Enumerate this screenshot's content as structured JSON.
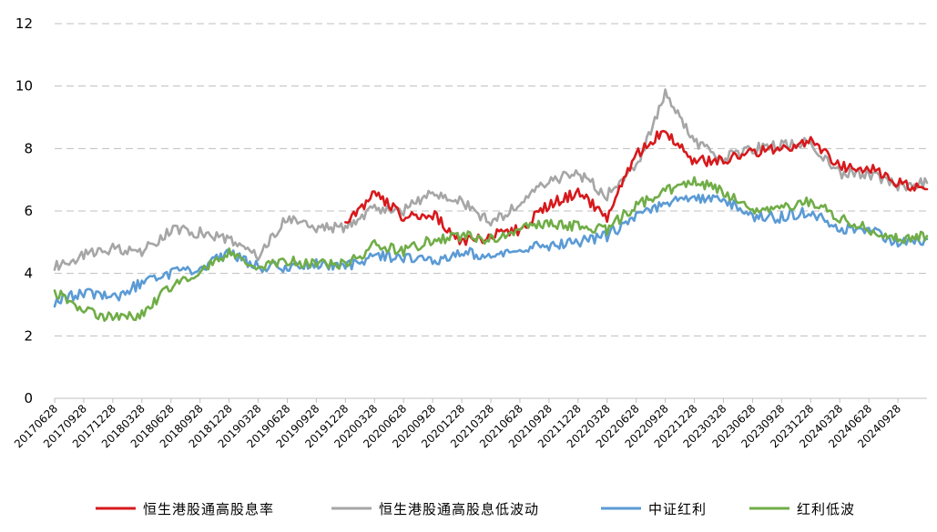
{
  "chart_data": {
    "type": "line",
    "title": "",
    "xlabel": "",
    "ylabel": "",
    "ylim": [
      0,
      12
    ],
    "y_ticks": [
      "0",
      "2",
      "4",
      "6",
      "8",
      "10",
      "12"
    ],
    "grid": "horizontal dashed",
    "legend_position": "bottom",
    "x_tick_labels": [
      "20170628",
      "20170928",
      "20171228",
      "20180328",
      "20180628",
      "20180928",
      "20181228",
      "20190328",
      "20190628",
      "20190928",
      "20191228",
      "20200328",
      "20200628",
      "20200928",
      "20201228",
      "20210328",
      "20210628",
      "20210928",
      "20211228",
      "20220328",
      "20220628",
      "20220928",
      "20221228",
      "20230328",
      "20230628",
      "20230928",
      "20231228",
      "20240328",
      "20240628",
      "20240928"
    ],
    "x": [
      "20170628",
      "20170928",
      "20171228",
      "20180328",
      "20180628",
      "20180928",
      "20181228",
      "20190328",
      "20190628",
      "20190928",
      "20191228",
      "20200328",
      "20200628",
      "20200928",
      "20201228",
      "20210328",
      "20210628",
      "20210928",
      "20211228",
      "20220328",
      "20220628",
      "20220928",
      "20221228",
      "20230328",
      "20230628",
      "20230928",
      "20231228",
      "20240328",
      "20240628",
      "20240928",
      "20241228"
    ],
    "series": [
      {
        "name": "恒生港股通高股息率",
        "color": "#d7191c",
        "values": [
          null,
          null,
          null,
          null,
          null,
          null,
          null,
          null,
          null,
          null,
          5.5,
          6.6,
          5.8,
          5.9,
          5.0,
          5.2,
          5.4,
          6.2,
          6.6,
          5.8,
          7.8,
          8.6,
          7.6,
          7.6,
          7.9,
          8.0,
          8.3,
          7.4,
          7.4,
          6.9,
          6.7
        ]
      },
      {
        "name": "恒生港股通高股息低波动",
        "color": "#a6a6a6",
        "values": [
          4.2,
          4.6,
          4.8,
          4.7,
          5.4,
          5.3,
          5.1,
          4.6,
          5.8,
          5.4,
          5.5,
          6.1,
          6.0,
          6.6,
          6.3,
          5.6,
          6.2,
          7.0,
          7.2,
          6.5,
          7.4,
          9.8,
          8.2,
          7.7,
          8.0,
          8.1,
          8.2,
          7.2,
          7.2,
          6.8,
          6.9
        ]
      },
      {
        "name": "中证红利",
        "color": "#5b9bd5",
        "values": [
          3.1,
          3.4,
          3.2,
          3.7,
          4.0,
          4.1,
          4.7,
          4.2,
          4.2,
          4.3,
          4.2,
          4.6,
          4.5,
          4.4,
          4.7,
          4.5,
          4.8,
          4.9,
          5.0,
          5.2,
          5.8,
          6.3,
          6.4,
          6.4,
          5.8,
          5.8,
          6.0,
          5.4,
          5.4,
          5.0,
          5.1
        ]
      },
      {
        "name": "红利低波",
        "color": "#70ad47",
        "values": [
          3.4,
          2.8,
          2.6,
          2.7,
          3.6,
          4.0,
          4.7,
          4.2,
          4.4,
          4.3,
          4.3,
          4.9,
          4.7,
          5.1,
          5.2,
          5.1,
          5.4,
          5.6,
          5.5,
          5.4,
          6.2,
          6.6,
          7.0,
          6.6,
          6.0,
          6.1,
          6.3,
          5.8,
          5.4,
          5.1,
          5.2
        ]
      }
    ]
  },
  "legend": {
    "items": [
      {
        "label": "恒生港股通高股息率",
        "color": "#d7191c"
      },
      {
        "label": "恒生港股通高股息低波动",
        "color": "#a6a6a6"
      },
      {
        "label": "中证红利",
        "color": "#5b9bd5"
      },
      {
        "label": "红利低波",
        "color": "#70ad47"
      }
    ]
  }
}
